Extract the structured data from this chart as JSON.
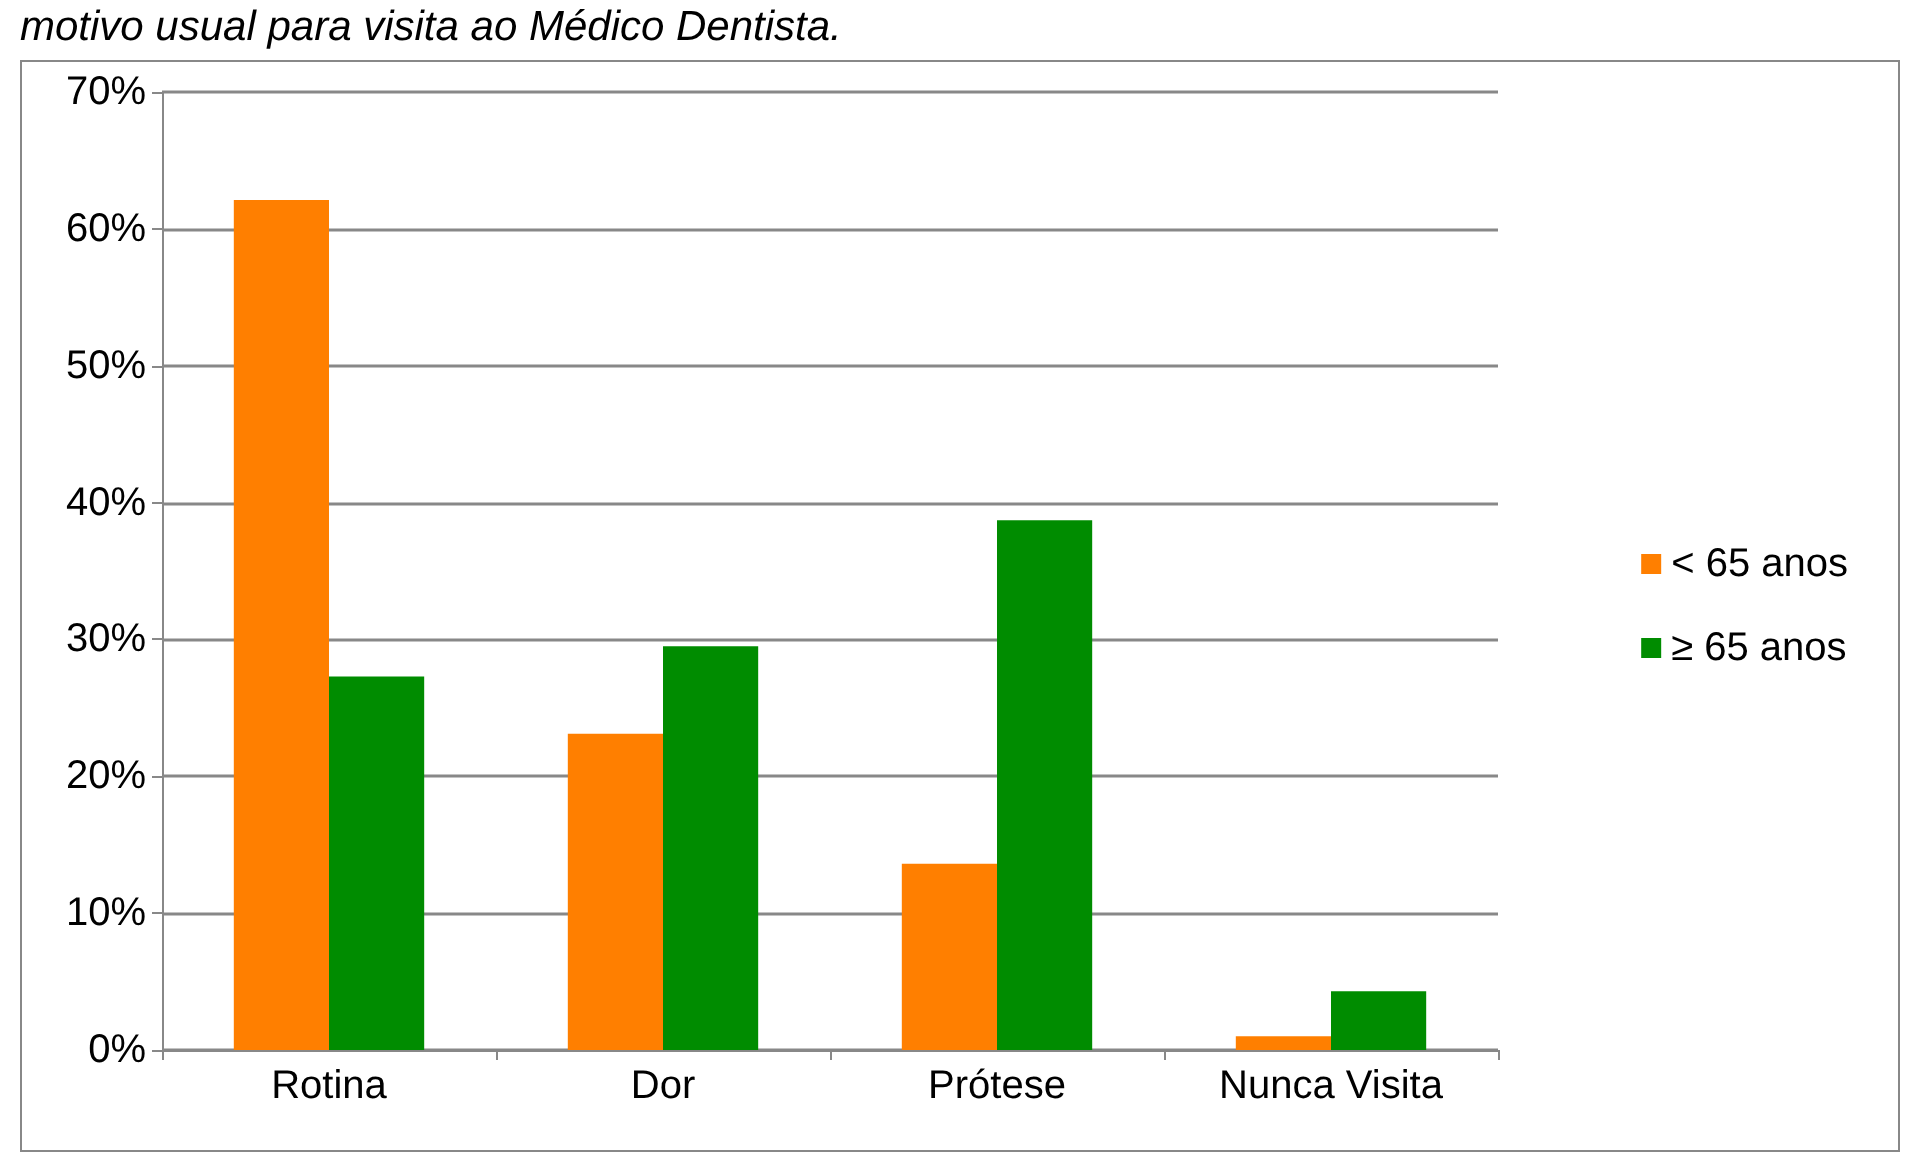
{
  "chart_data": {
    "type": "bar",
    "title": "motivo usual para visita ao Médico Dentista.",
    "categories": [
      "Rotina",
      "Dor",
      "Prótese",
      "Nunca Visita"
    ],
    "series": [
      {
        "name": "< 65 anos",
        "color": "#ff7f00",
        "values": [
          62.1,
          23.1,
          13.6,
          1.0
        ]
      },
      {
        "name": "≥ 65 anos",
        "color": "#008c00",
        "values": [
          27.3,
          29.5,
          38.7,
          4.3
        ]
      }
    ],
    "ylim": [
      0,
      70
    ],
    "yticks": [
      {
        "value": 0,
        "label": "0%"
      },
      {
        "value": 10,
        "label": "10%"
      },
      {
        "value": 20,
        "label": "20%"
      },
      {
        "value": 30,
        "label": "30%"
      },
      {
        "value": 40,
        "label": "40%"
      },
      {
        "value": 50,
        "label": "50%"
      },
      {
        "value": 60,
        "label": "60%"
      },
      {
        "value": 70,
        "label": "70%"
      }
    ],
    "grid": "y",
    "legend": "right"
  }
}
